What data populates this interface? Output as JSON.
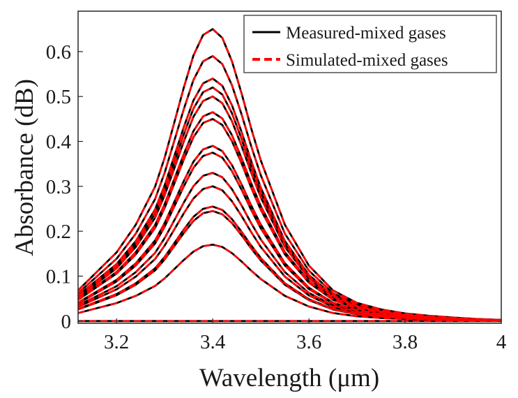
{
  "chart_data": {
    "type": "line",
    "title": "",
    "xlabel": "Wavelength (μm)",
    "ylabel": "Absorbance (dB)",
    "xlim": [
      3.12,
      4.0
    ],
    "ylim": [
      -0.005,
      0.69
    ],
    "xticks": [
      3.2,
      3.4,
      3.6,
      3.8,
      4.0
    ],
    "xtick_labels": [
      "3.2",
      "3.4",
      "3.6",
      "3.8",
      "4"
    ],
    "yticks": [
      0,
      0.1,
      0.2,
      0.3,
      0.4,
      0.5,
      0.6
    ],
    "ytick_labels": [
      "0",
      "0.1",
      "0.2",
      "0.3",
      "0.4",
      "0.5",
      "0.6"
    ],
    "grid": false,
    "legend_position": "top-right",
    "legend": [
      {
        "label": "Measured-mixed gases",
        "color": "#000000",
        "style": "solid"
      },
      {
        "label": "Simulated-mixed gases",
        "color": "#ff0000",
        "style": "dashed"
      }
    ],
    "x": [
      3.12,
      3.16,
      3.2,
      3.24,
      3.28,
      3.3,
      3.32,
      3.34,
      3.36,
      3.38,
      3.4,
      3.42,
      3.44,
      3.46,
      3.48,
      3.5,
      3.55,
      3.6,
      3.65,
      3.7,
      3.75,
      3.8,
      3.85,
      3.9,
      3.95,
      4.0
    ],
    "series": [
      {
        "name": "Measured-mixed gases",
        "color": "#000000",
        "peak_values": [
          0.65,
          0.59,
          0.54,
          0.52,
          0.5,
          0.465,
          0.45,
          0.39,
          0.375,
          0.33,
          0.3,
          0.255,
          0.245,
          0.17,
          0.0
        ]
      },
      {
        "name": "Simulated-mixed gases",
        "color": "#ff0000",
        "peak_values": [
          0.65,
          0.59,
          0.54,
          0.52,
          0.5,
          0.465,
          0.45,
          0.39,
          0.375,
          0.33,
          0.3,
          0.255,
          0.245,
          0.17,
          0.0
        ]
      }
    ],
    "normalized_profile": [
      0.105,
      0.17,
      0.235,
      0.33,
      0.46,
      0.56,
      0.68,
      0.8,
      0.91,
      0.98,
      1.0,
      0.97,
      0.89,
      0.78,
      0.66,
      0.55,
      0.33,
      0.19,
      0.105,
      0.062,
      0.04,
      0.026,
      0.018,
      0.012,
      0.007,
      0.004
    ]
  }
}
